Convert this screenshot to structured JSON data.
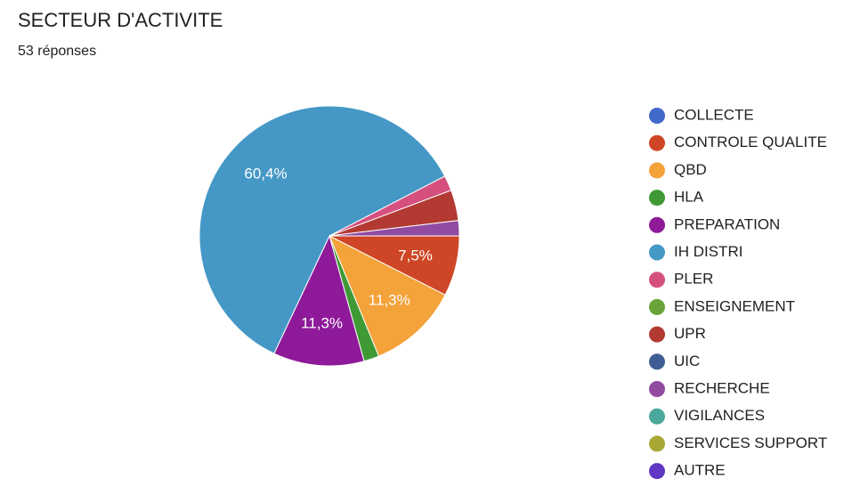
{
  "chart_data": {
    "type": "pie",
    "title": "SECTEUR D'ACTIVITE",
    "subtitle": "53 réponses",
    "categories": [
      "COLLECTE",
      "CONTROLE QUALITE",
      "QBD",
      "HLA",
      "PREPARATION",
      "IH DISTRI",
      "PLER",
      "ENSEIGNEMENT",
      "UPR",
      "UIC",
      "RECHERCHE",
      "VIGILANCES",
      "SERVICES SUPPORT",
      "AUTRE"
    ],
    "values": [
      0,
      7.5,
      11.3,
      1.9,
      11.3,
      60.4,
      1.9,
      0,
      3.8,
      0,
      1.9,
      0,
      0,
      0
    ],
    "value_labels": [
      null,
      "7,5%",
      "11,3%",
      null,
      "11,3%",
      "60,4%",
      null,
      null,
      null,
      null,
      null,
      null,
      null,
      null
    ],
    "colors": [
      "#4169c9",
      "#cf4626",
      "#f4a23a",
      "#3f9a36",
      "#8e1a99",
      "#4598c6",
      "#d6507f",
      "#6aa33a",
      "#b23a33",
      "#3f5e94",
      "#914ba0",
      "#4aa79b",
      "#a8a834",
      "#6136c4"
    ],
    "legend": "right"
  }
}
